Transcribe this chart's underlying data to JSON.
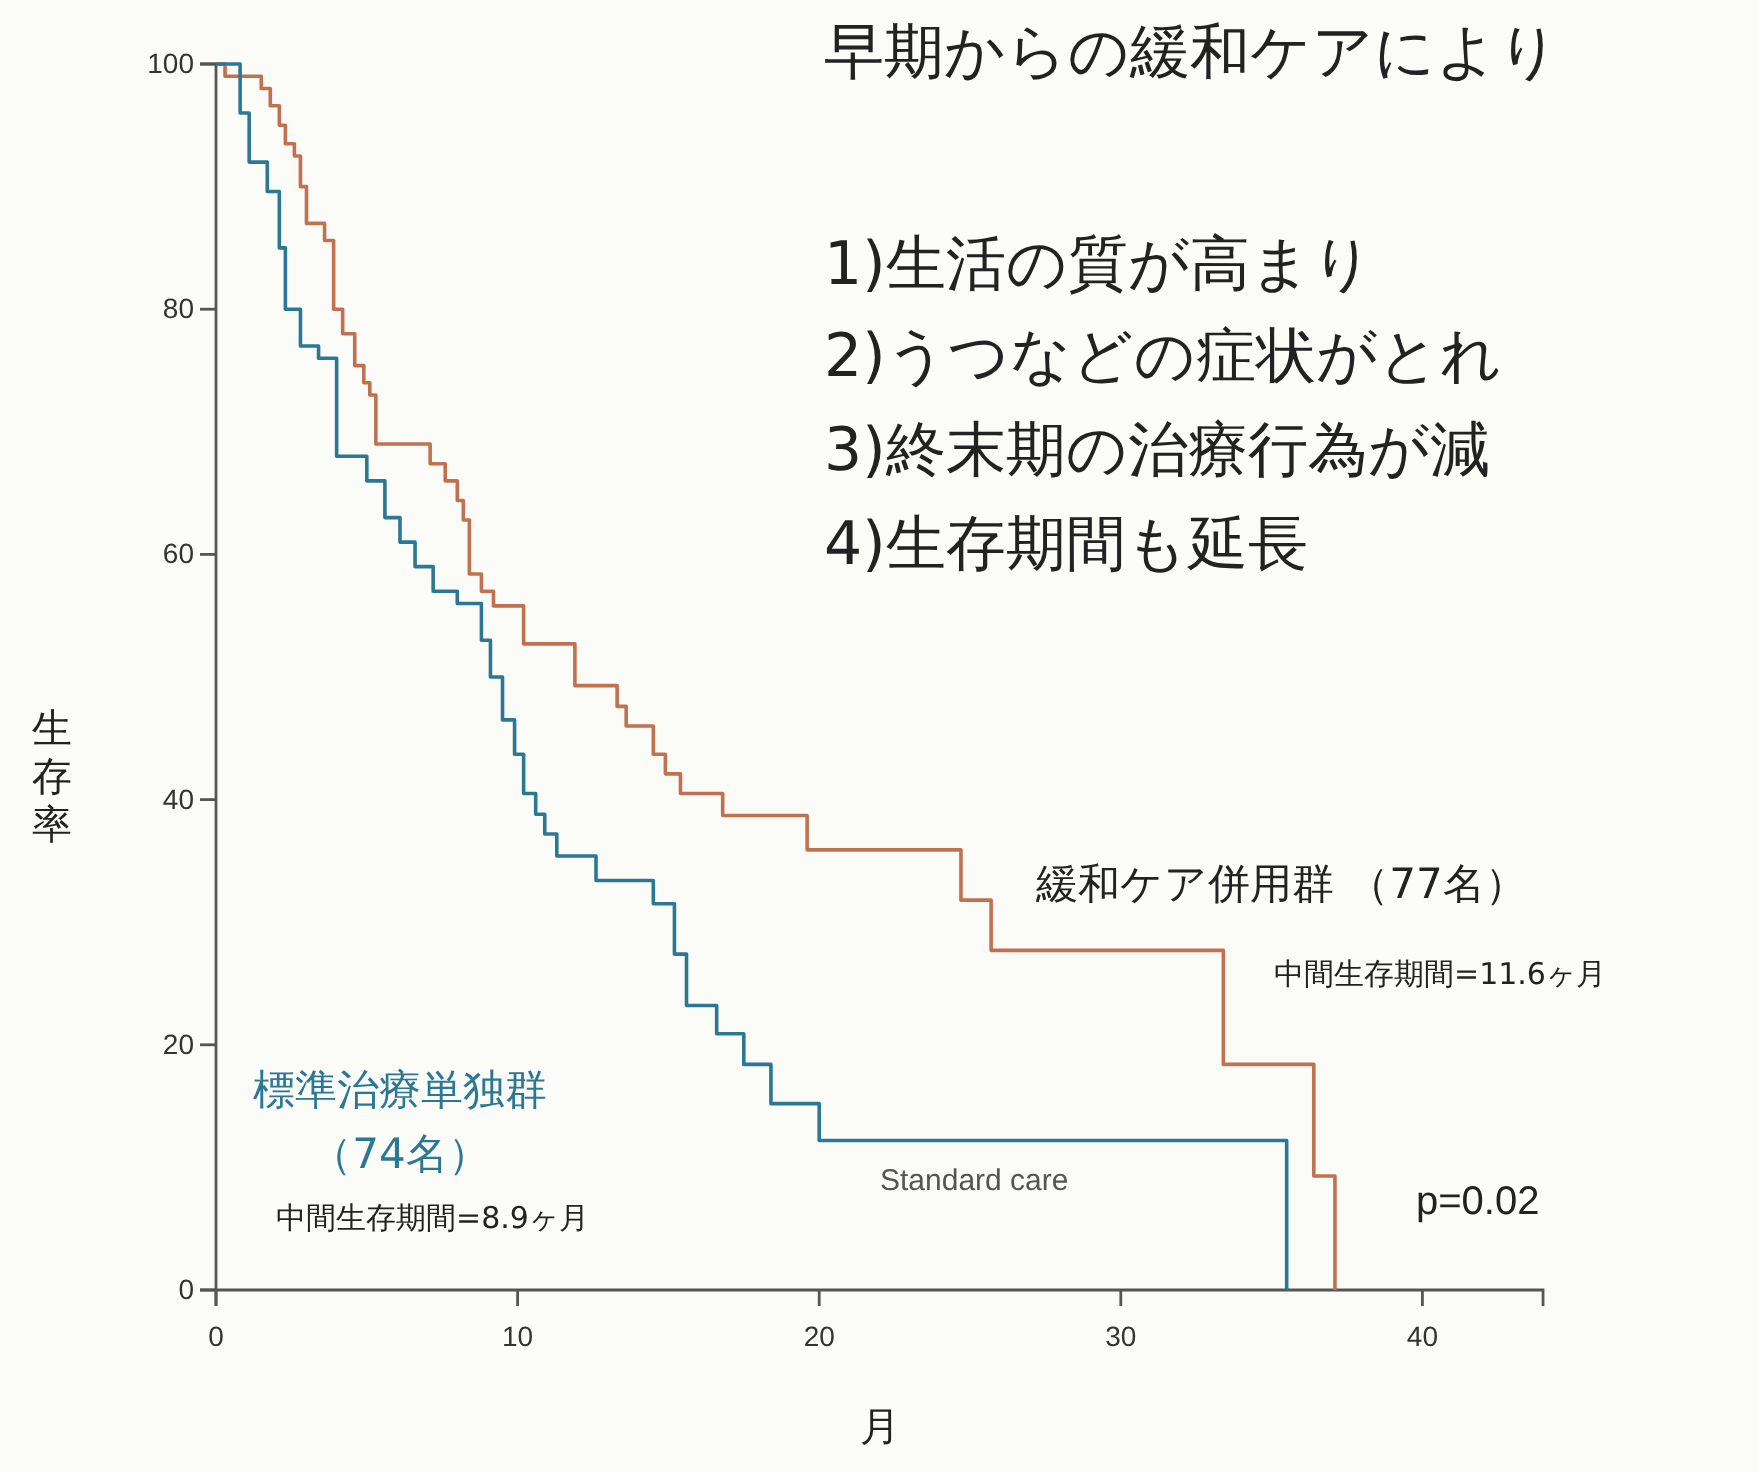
{
  "chart_data": {
    "type": "step",
    "title": "早期からの緩和ケアにより",
    "xlabel": "月",
    "ylabel": "生存率",
    "xlim": [
      0,
      44
    ],
    "xticks": [
      0,
      10,
      20,
      30,
      40
    ],
    "ylim": [
      0,
      100
    ],
    "yticks": [
      0,
      20,
      40,
      60,
      80,
      100
    ],
    "grid": false,
    "legend": false,
    "marker": "none",
    "line_style": "solid",
    "series": [
      {
        "name": "緩和ケア併用群 （77名）",
        "color": "#c0714f",
        "x": [
          0,
          0.3,
          1.5,
          1.8,
          2.1,
          2.3,
          2.6,
          2.8,
          3.0,
          3.6,
          3.9,
          4.2,
          4.6,
          4.9,
          5.1,
          5.3,
          7.1,
          7.6,
          8.0,
          8.2,
          8.4,
          8.8,
          9.2,
          10.2,
          11.9,
          13.3,
          13.6,
          14.5,
          14.9,
          15.4,
          16.8,
          19.6,
          24.7,
          25.7,
          33.4,
          36.4,
          37.1
        ],
        "values": [
          100,
          99,
          98,
          96.6,
          95,
          93.5,
          92.5,
          90,
          87,
          85.6,
          80,
          78,
          75.4,
          74,
          73,
          69,
          67.4,
          66,
          64.4,
          62.8,
          58.4,
          57,
          55.8,
          52.7,
          49.3,
          47.6,
          46,
          43.7,
          42.1,
          40.5,
          38.7,
          35.9,
          31.8,
          27.7,
          18.4,
          9.3,
          0
        ]
      },
      {
        "name": "標準治療単独群（74名）",
        "color": "#2b7894",
        "x": [
          0,
          0.8,
          1.1,
          1.7,
          2.1,
          2.3,
          2.8,
          3.4,
          4.0,
          5.0,
          5.6,
          6.1,
          6.6,
          7.2,
          8.0,
          8.8,
          9.1,
          9.5,
          9.9,
          10.2,
          10.6,
          10.9,
          11.3,
          12.6,
          14.5,
          15.2,
          15.6,
          16.6,
          17.5,
          18.4,
          20.0,
          35.5
        ],
        "values": [
          100,
          96,
          92,
          89.6,
          85,
          80,
          77,
          76,
          68,
          66,
          63,
          61,
          59,
          57,
          56,
          53,
          50,
          46.5,
          43.7,
          40.5,
          38.8,
          37.2,
          35.4,
          33.4,
          31.5,
          27.4,
          23.2,
          20.9,
          18.4,
          15.2,
          12.2,
          0
        ]
      }
    ],
    "annotations": [
      "1)生活の質が高まり",
      "2)うつなどの症状がとれ",
      "3)終末期の治療行為が減",
      "4)生存期間も延長",
      "中間生存期間=11.6ヶ月",
      "中間生存期間=8.9ヶ月",
      "Standard care",
      "p=0.02"
    ]
  }
}
